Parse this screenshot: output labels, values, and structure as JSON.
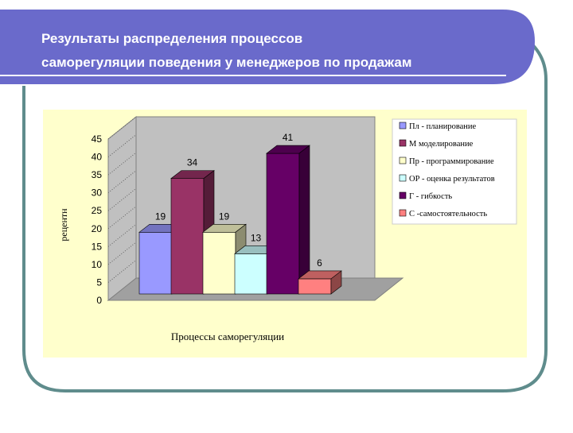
{
  "slide": {
    "title_line1": "Результаты     распределения     процессов",
    "title_line2": "саморегуляции поведения у менеджеров по продажам"
  },
  "colors": {
    "header": "#6a6acb",
    "frame": "#5f8c8c",
    "chart_bg": "#ffffcc",
    "wall": "#c0c0c0"
  },
  "chart_data": {
    "type": "bar",
    "title": "",
    "xlabel": "Процессы саморегуляции",
    "ylabel": "рецентн",
    "ylim": [
      0,
      45
    ],
    "yticks": [
      0,
      5,
      10,
      15,
      20,
      25,
      30,
      35,
      40,
      45
    ],
    "grid": false,
    "three_d": true,
    "legend_position": "right",
    "series": [
      {
        "name": "Пл - планирование",
        "value": 19,
        "label": "19",
        "color": "#9999ff"
      },
      {
        "name": "М    моделирование",
        "value": 34,
        "label": "34",
        "color": "#993366"
      },
      {
        "name": "Пр - программирование",
        "value": 19,
        "label": "19",
        "color": "#ffffcc"
      },
      {
        "name": "ОР - оценка результатов",
        "value": 13,
        "label": "13",
        "color": "#ccffff"
      },
      {
        "name": "Г - гибкость",
        "value": 41,
        "label": "41",
        "color": "#660066"
      },
      {
        "name": "С -самостоятельность",
        "value": 6,
        "label": "6",
        "color": "#ff8080"
      }
    ]
  }
}
